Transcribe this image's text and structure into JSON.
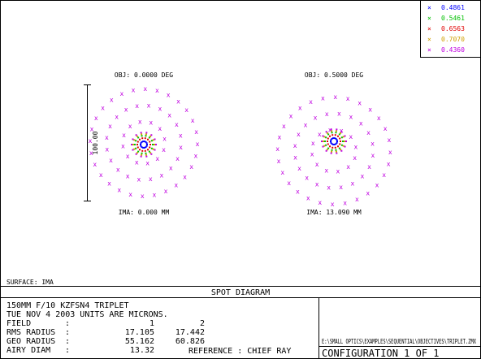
{
  "legend": [
    {
      "label": "0.4861",
      "color": "#0000ff"
    },
    {
      "label": "0.5461",
      "color": "#00c000"
    },
    {
      "label": "0.6563",
      "color": "#e00000"
    },
    {
      "label": "0.7070",
      "color": "#d0a000"
    },
    {
      "label": "0.4360",
      "color": "#c000e0"
    }
  ],
  "fields": [
    {
      "object": "OBJ: 0.0000 DEG",
      "image": "IMA: 0.000 MM"
    },
    {
      "object": "OBJ: 0.5000 DEG",
      "image": "IMA: 13.090 MM"
    }
  ],
  "scale_label": "100.00",
  "surface": "SURFACE: IMA",
  "title": "SPOT DIAGRAM",
  "info": {
    "lens": "150MM F/10 KZFSN4 TRIPLET",
    "date": "TUE NOV 4 2003  UNITS ARE MICRONS.",
    "rows": [
      [
        "FIELD",
        ":",
        "1",
        "2"
      ],
      [
        "RMS RADIUS",
        ":",
        "17.105",
        "17.442"
      ],
      [
        "GEO RADIUS",
        ":",
        "55.162",
        "60.826"
      ],
      [
        "AIRY DIAM",
        ":",
        "13.32"
      ]
    ],
    "reference": "REFERENCE  : CHIEF RAY"
  },
  "file": "E:\\SMALL OPTICS\\EXAMPLES\\SEQUENTIAL\\OBJECTIVES\\TRIPLET.ZMX",
  "configuration": "CONFIGURATION  1 OF  1"
}
